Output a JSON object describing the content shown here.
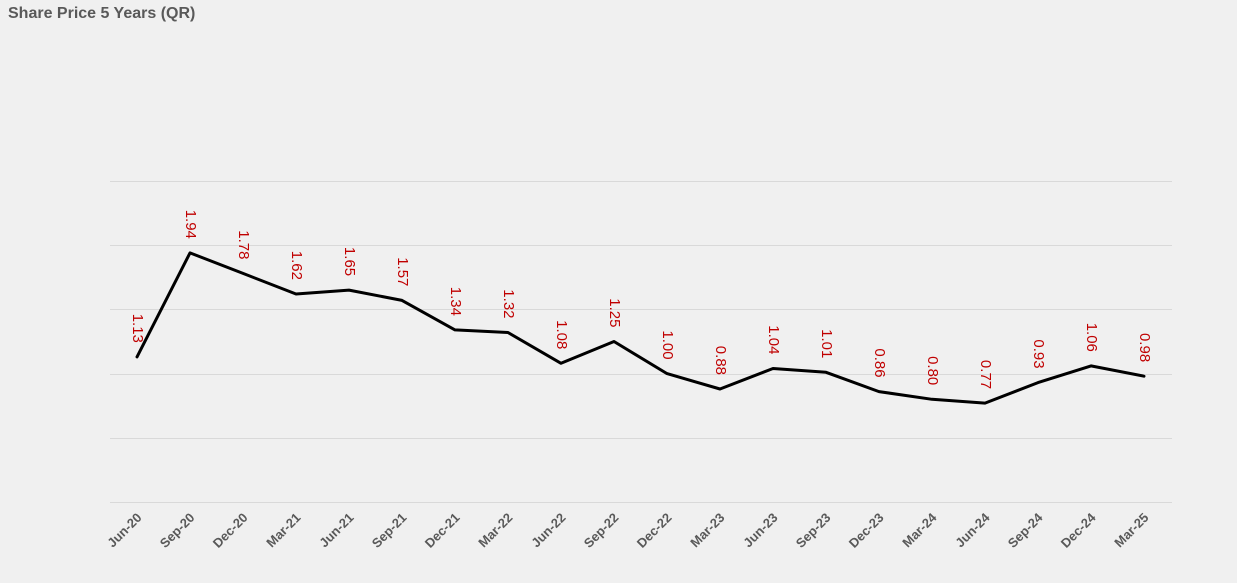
{
  "chart_data": {
    "type": "line",
    "title": "Share Price 5 Years (QR)",
    "categories": [
      "Jun-20",
      "Sep-20",
      "Dec-20",
      "Mar-21",
      "Jun-21",
      "Sep-21",
      "Dec-21",
      "Mar-22",
      "Jun-22",
      "Sep-22",
      "Dec-22",
      "Mar-23",
      "Jun-23",
      "Sep-23",
      "Dec-23",
      "Mar-24",
      "Jun-24",
      "Sep-24",
      "Dec-24",
      "Mar-25"
    ],
    "series": [
      {
        "values": [
          1.13,
          1.94,
          1.78,
          1.62,
          1.65,
          1.57,
          1.34,
          1.32,
          1.08,
          1.25,
          1.0,
          0.88,
          1.04,
          1.01,
          0.86,
          0.8,
          0.77,
          0.93,
          1.06,
          0.98
        ],
        "labels": [
          "1.13",
          "1.94",
          "1.78",
          "1.62",
          "1.65",
          "1.57",
          "1.34",
          "1.32",
          "1.08",
          "1.25",
          "1.00",
          "0.88",
          "1.04",
          "1.01",
          "0.86",
          "0.80",
          "0.77",
          "0.93",
          "1.06",
          "0.98"
        ],
        "color": "#000000"
      }
    ],
    "xlabel": "",
    "ylabel": "",
    "ylim": [
      0,
      2.5
    ],
    "yticks": [
      0,
      0.5,
      1.0,
      1.5,
      2.0,
      2.5
    ],
    "ytick_labels_visible": false,
    "grid": true,
    "legend": "none",
    "colors": {
      "line": "#000000",
      "data_label": "#c00000",
      "grid": "#d9d9d9",
      "tick_label": "#595959",
      "background": "#f0f0f0"
    }
  }
}
